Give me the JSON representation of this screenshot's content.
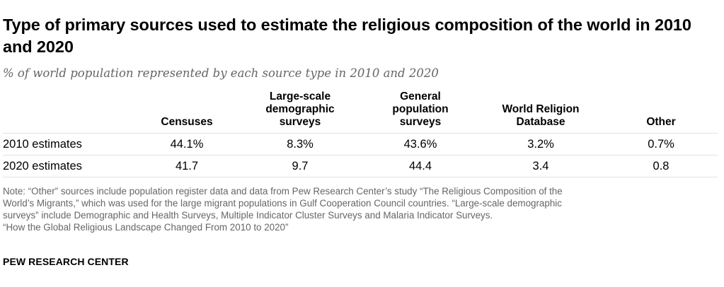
{
  "chart_data": {
    "type": "table",
    "title": "Type of primary sources used to estimate the religious composition of the world in 2010 and 2020",
    "subtitle": "% of world population represented by each source type in 2010 and 2020",
    "columns": [
      "Censuses",
      "Large-scale demographic surveys",
      "General population surveys",
      "World Religion Database",
      "Other"
    ],
    "column_lines": [
      [
        "Censuses"
      ],
      [
        "Large-scale",
        "demographic",
        "surveys"
      ],
      [
        "General",
        "population",
        "surveys"
      ],
      [
        "World Religion",
        "Database"
      ],
      [
        "Other"
      ]
    ],
    "rows": [
      {
        "label": "2010 estimates",
        "cells": [
          "44.1%",
          "8.3%",
          "43.6%",
          "3.2%",
          "0.7%"
        ]
      },
      {
        "label": "2020 estimates",
        "cells": [
          "41.7",
          "9.7",
          "44.4",
          "3.4",
          "0.8"
        ]
      }
    ],
    "note_lines": [
      "Note: “Other” sources include population register data and data from Pew Research Center’s study “The Religious Composition of the",
      "World’s Migrants,” which was used for the large migrant populations in Gulf Cooperation Council countries. “Large-scale demographic",
      "surveys” include Demographic and Health Surveys, Multiple Indicator Cluster Surveys and Malaria Indicator Surveys.",
      "“How the Global Religious Landscape Changed From 2010 to 2020”"
    ],
    "source": "PEW RESEARCH CENTER"
  }
}
